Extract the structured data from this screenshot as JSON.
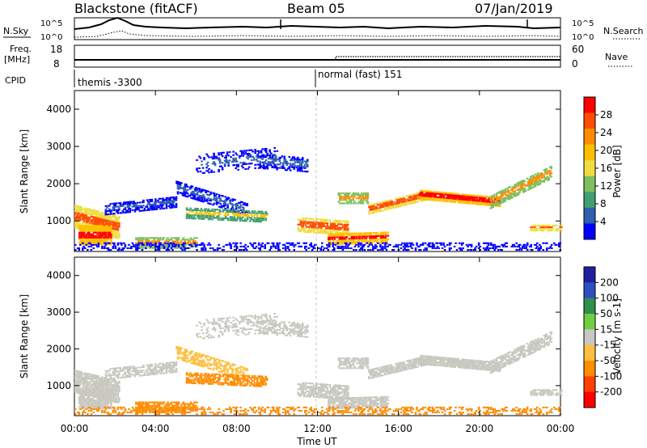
{
  "header": {
    "station": "Blackstone (fitACF)",
    "beam": "Beam 05",
    "date": "07/Jan/2019"
  },
  "noise_panel": {
    "left_label": "N.Sky",
    "right_label": "N.Search",
    "left_ticks": [
      "10^5",
      "10^0"
    ],
    "right_ticks": [
      "10^5",
      "10^0"
    ]
  },
  "freq_panel": {
    "left_label_line1": "Freq.",
    "left_label_line2": "[MHz]",
    "right_label": "Nave",
    "left_ticks": [
      "18",
      "8"
    ],
    "right_ticks": [
      "60",
      "0"
    ]
  },
  "cpid_panel": {
    "label": "CPID",
    "segments": [
      {
        "text": "themis -3300",
        "start_hour": 0
      },
      {
        "text": "normal (fast) 151",
        "start_hour": 12
      }
    ]
  },
  "power_panel": {
    "ylabel": "Slant Range [km]",
    "colorbar_label": "Power [dB]",
    "colorbar_ticks": [
      "28",
      "24",
      "20",
      "16",
      "12",
      "8",
      "4"
    ],
    "colors": [
      "#ff0000",
      "#ff4d00",
      "#ff8c00",
      "#ffbf00",
      "#f0dc40",
      "#7fbf5f",
      "#3f9f6f",
      "#2f5faf",
      "#0000ff"
    ]
  },
  "velocity_panel": {
    "ylabel": "Slant Range [km]",
    "colorbar_label": "Velocity [m s-1]",
    "colorbar_ticks": [
      "200",
      "100",
      "50",
      "15",
      "-15",
      "-50",
      "-100",
      "-200"
    ],
    "colors": [
      "#1f1f9f",
      "#2f4fbf",
      "#2f8f4f",
      "#6fcf3f",
      "#c8c8c0",
      "#ffbf3f",
      "#ff8c00",
      "#ff4000",
      "#ff0000"
    ],
    "ground_scatter_color": "#c8c8c0"
  },
  "x_axis": {
    "label": "Time UT",
    "ticks": [
      "00:00",
      "04:00",
      "08:00",
      "12:00",
      "16:00",
      "20:00",
      "00:00"
    ]
  },
  "chart_data": {
    "type": "heatmap",
    "title": "Blackstone (fitACF)",
    "subtitle": "Beam 05",
    "xlabel": "Time UT",
    "ylabel": "Slant Range [km]",
    "xlim": [
      0,
      24
    ],
    "ylim": [
      180,
      4500
    ],
    "y_ticks": [
      1000,
      2000,
      3000,
      4000
    ],
    "series": [
      {
        "name": "Power [dB]",
        "clim": [
          0,
          32
        ]
      },
      {
        "name": "Velocity [m s-1]",
        "clim": [
          -250,
          250
        ]
      }
    ],
    "cpid_change_hour": 12
  }
}
